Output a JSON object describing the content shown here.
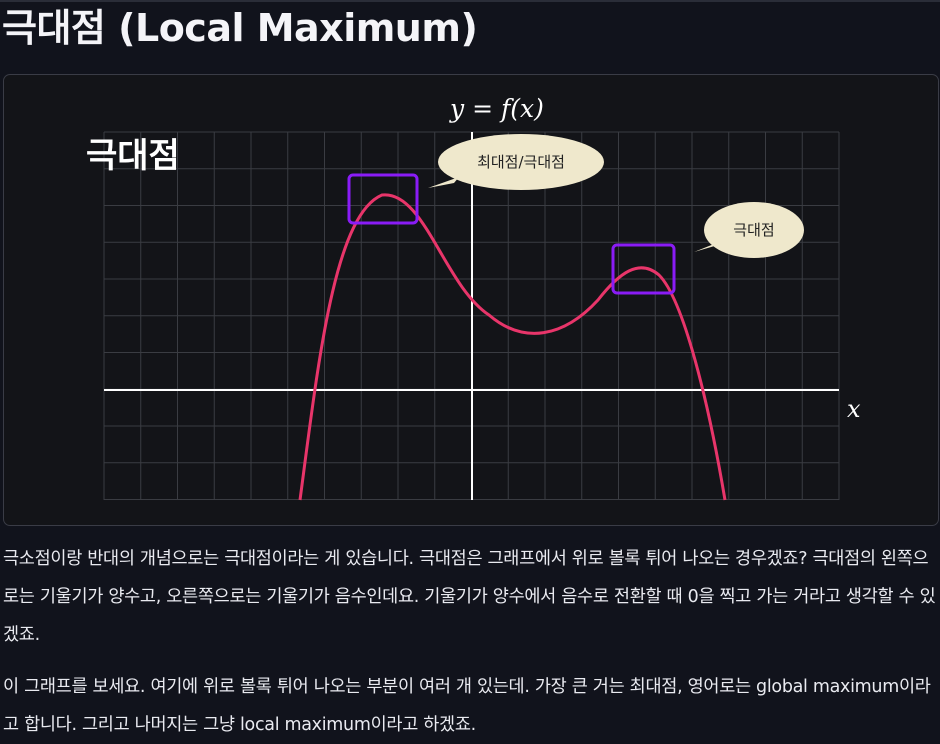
{
  "page": {
    "title": "극대점 (Local Maximum)"
  },
  "figure": {
    "func_label": "y = f(x)",
    "x_axis_label": "x",
    "panel_label": "극대점",
    "callouts": [
      {
        "text": "최대점/극대점"
      },
      {
        "text": "극대점"
      }
    ],
    "colors": {
      "curve": "#e8356a",
      "highlight_box": "#8a1cf6",
      "callout_fill": "#efe8cc",
      "grid": "#3a3c42",
      "axis": "#ffffff"
    }
  },
  "paragraphs": [
    "극소점이랑 반대의 개념으로는 극대점이라는 게 있습니다. 극대점은 그래프에서 위로 볼록 튀어 나오는 경우겠죠? 극대점의 왼쪽으로는 기울기가 양수고, 오른쪽으로는 기울기가 음수인데요. 기울기가 양수에서 음수로 전환할 때 0을 찍고 가는 거라고 생각할 수 있겠죠.",
    "이 그래프를 보세요. 여기에 위로 볼록 튀어 나오는 부분이 여러 개 있는데. 가장 큰 거는 최대점, 영어로는 global maximum이라고 합니다. 그리고 나머지는 그냥 local maximum이라고 하겠죠."
  ]
}
